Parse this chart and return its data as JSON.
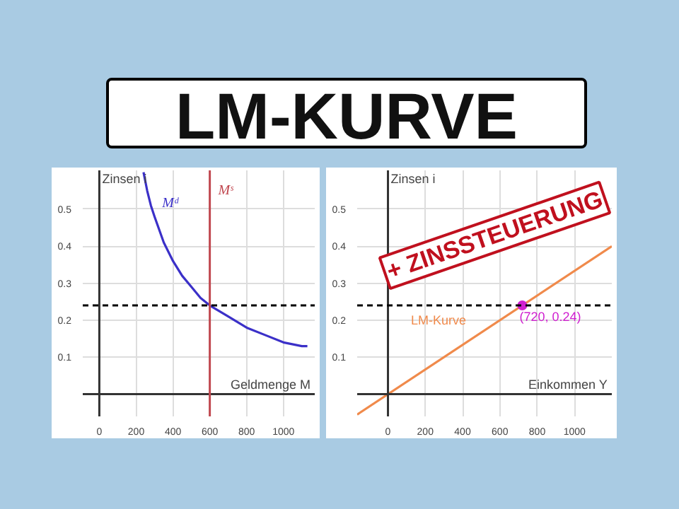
{
  "chart_data": [
    {
      "type": "line",
      "title": "LM-KURVE",
      "xlabel": "Geldmenge M",
      "ylabel": "Zinsen i",
      "xlim": [
        -90,
        1170
      ],
      "ylim": [
        -0.06,
        0.605
      ],
      "xticks": [
        0,
        200,
        400,
        600,
        800,
        1000
      ],
      "yticks": [
        0.1,
        0.2,
        0.3,
        0.4,
        0.5
      ],
      "grid": true,
      "marker": "none",
      "series": [
        {
          "name": "Mᵈ",
          "color": "#3b30c8",
          "x": [
            240,
            260,
            280,
            300,
            350,
            400,
            450,
            500,
            550,
            600,
            700,
            800,
            900,
            1000,
            1100,
            1130
          ],
          "values": [
            0.6,
            0.55,
            0.51,
            0.48,
            0.41,
            0.36,
            0.32,
            0.29,
            0.26,
            0.24,
            0.21,
            0.18,
            0.16,
            0.14,
            0.13,
            0.13
          ]
        }
      ],
      "ref_lines": [
        {
          "axis": "x",
          "value": 600,
          "label": "Mˢ",
          "color": "#c0474f",
          "line_style": "solid"
        },
        {
          "axis": "y",
          "value": 0.24,
          "color": "#000000",
          "line_style": "dashed"
        }
      ]
    },
    {
      "type": "line",
      "xlabel": "Einkommen Y",
      "ylabel": "Zinsen i",
      "xlim": [
        -165,
        1200
      ],
      "ylim": [
        -0.06,
        0.605
      ],
      "xticks": [
        0,
        200,
        400,
        600,
        800,
        1000
      ],
      "yticks": [
        0.1,
        0.2,
        0.3,
        0.4,
        0.5
      ],
      "grid": true,
      "marker": "none",
      "series": [
        {
          "name": "LM-Kurve",
          "color": "#f08a4b",
          "x": [
            -165,
            1200
          ],
          "values": [
            -0.055,
            0.4
          ]
        },
        {
          "type": "scatter",
          "color": "#d020d0",
          "x": [
            720
          ],
          "values": [
            0.24
          ],
          "value_labels": [
            "(720, 0.24)"
          ],
          "marker": "circle"
        }
      ],
      "ref_lines": [
        {
          "axis": "y",
          "value": 0.24,
          "color": "#000000",
          "line_style": "dashed"
        }
      ],
      "annotations": [
        "+ ZINSSTEUERUNG"
      ]
    }
  ]
}
